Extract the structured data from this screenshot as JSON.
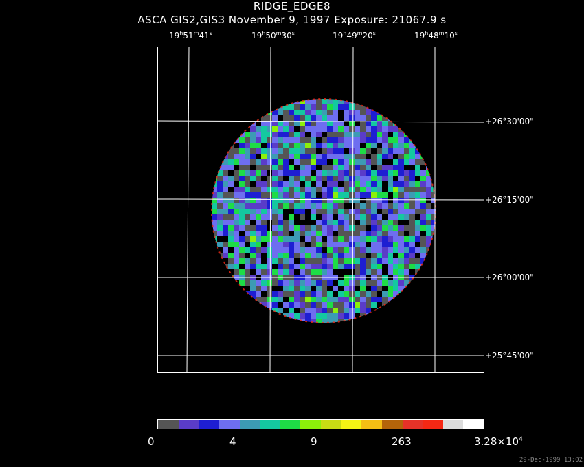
{
  "header": {
    "title": "RIDGE_EDGE8",
    "subtitle": "ASCA GIS2,GIS3 November 9, 1997 Exposure: 21067.9 s"
  },
  "ra_labels": [
    {
      "h": "19",
      "m": "51",
      "s": "41"
    },
    {
      "h": "19",
      "m": "50",
      "s": "30"
    },
    {
      "h": "19",
      "m": "49",
      "s": "20"
    },
    {
      "h": "19",
      "m": "48",
      "s": "10"
    }
  ],
  "ra_units": {
    "h": "h",
    "m": "m",
    "s": "s"
  },
  "dec_labels": [
    "+26°30'00\"",
    "+26°15'00\"",
    "+26°00'00\"",
    "+25°45'00\""
  ],
  "colorbar": {
    "colors": [
      "#555555",
      "#5a3cc8",
      "#1e1ed2",
      "#6e6ef0",
      "#3c9bb4",
      "#14c8a0",
      "#1edc46",
      "#8cf00a",
      "#c8dc14",
      "#f5f514",
      "#f5be14",
      "#b4640a",
      "#e63228",
      "#f52814",
      "#dcdcdc",
      "#ffffff"
    ],
    "labels": [
      "0",
      "4",
      "9",
      "263",
      "3.28×10"
    ],
    "exponent": "4"
  },
  "image": {
    "background_color": "#555555",
    "palette": [
      "#000000",
      "#555555",
      "#555555",
      "#5a3cc8",
      "#1e1ed2",
      "#6e6ef0",
      "#6e6ef0",
      "#3c9bb4",
      "#14c8a0",
      "#1edc46"
    ]
  },
  "timestamp": "29-Dec-1999 13:02"
}
